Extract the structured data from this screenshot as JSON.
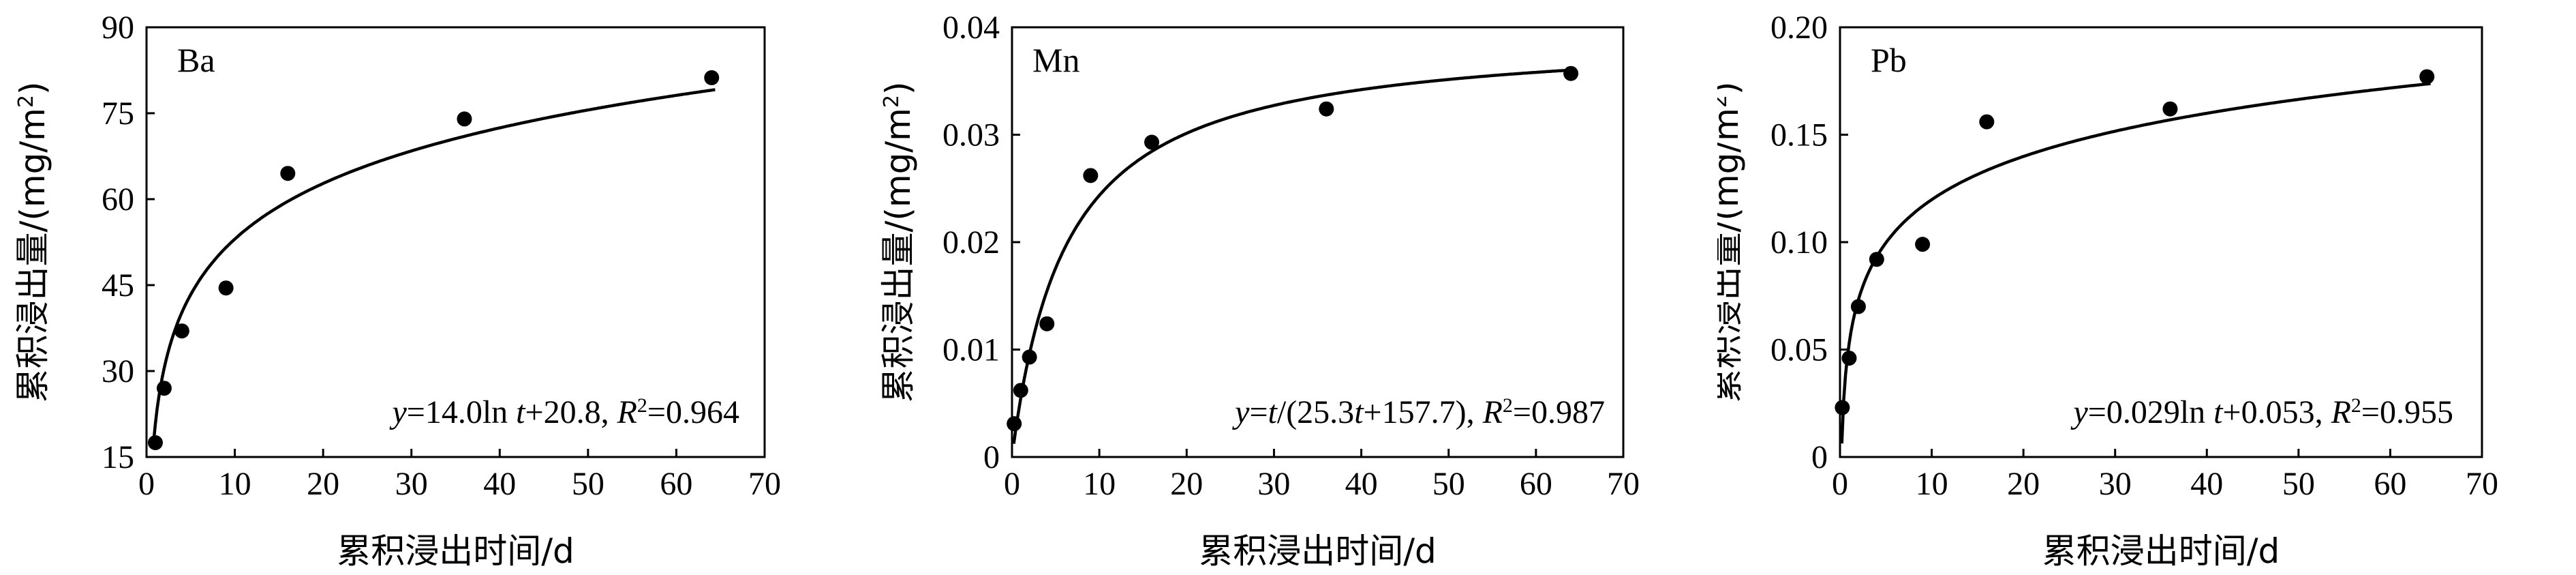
{
  "chart_data": [
    {
      "type": "scatter",
      "panel_label": "Ba",
      "xlabel": "累积浸出时间/d",
      "ylabel_main": "累积浸出量/(mg/m",
      "ylabel_sup": "2",
      "ylabel_tail": ")",
      "xlim": [
        0,
        70
      ],
      "ylim": [
        15,
        90
      ],
      "xticks": [
        "0",
        "10",
        "20",
        "30",
        "40",
        "50",
        "60",
        "70"
      ],
      "yticks": [
        "15",
        "30",
        "45",
        "60",
        "75",
        "90"
      ],
      "points": [
        [
          1,
          17.5
        ],
        [
          2,
          27
        ],
        [
          4,
          37
        ],
        [
          9,
          44.5
        ],
        [
          16,
          64.5
        ],
        [
          36,
          74
        ],
        [
          64,
          81.2
        ]
      ],
      "fit": {
        "model": "log",
        "a": 14.0,
        "b": 20.8
      },
      "equation": [
        "y",
        "=14.0ln ",
        "t",
        "+20.8, ",
        "R",
        "2",
        "=0.964"
      ]
    },
    {
      "type": "scatter",
      "panel_label": "Mn",
      "xlabel": "累积浸出时间/d",
      "ylabel_main": "累积浸出量/(mg/m",
      "ylabel_sup": "2",
      "ylabel_tail": ")",
      "xlim": [
        0,
        70
      ],
      "ylim": [
        0,
        0.04
      ],
      "xticks": [
        "0",
        "10",
        "20",
        "30",
        "40",
        "50",
        "60",
        "70"
      ],
      "yticks": [
        "0",
        "0.01",
        "0.02",
        "0.03",
        "0.04"
      ],
      "points": [
        [
          0.25,
          0.0031
        ],
        [
          1,
          0.0062
        ],
        [
          2,
          0.0093
        ],
        [
          4,
          0.0124
        ],
        [
          9,
          0.0262
        ],
        [
          16,
          0.0293
        ],
        [
          36,
          0.0324
        ],
        [
          64,
          0.0357
        ]
      ],
      "fit": {
        "model": "hyperbolic",
        "a": 25.3,
        "b": 157.7
      },
      "equation": [
        "y",
        "=",
        "t",
        "/(25.3",
        "t",
        "+157.7), ",
        "R",
        "2",
        "=0.987"
      ]
    },
    {
      "type": "scatter",
      "panel_label": "Pb",
      "xlabel": "累积浸出时间/d",
      "ylabel_main": "累积浸出量/(mg/m",
      "ylabel_sup": "2",
      "ylabel_tail": ")",
      "xlim": [
        0,
        70
      ],
      "ylim": [
        0,
        0.2
      ],
      "xticks": [
        "0",
        "10",
        "20",
        "30",
        "40",
        "50",
        "60",
        "70"
      ],
      "yticks": [
        "0",
        "0.05",
        "0.10",
        "0.15",
        "0.20"
      ],
      "points": [
        [
          0.25,
          0.023
        ],
        [
          1,
          0.046
        ],
        [
          2,
          0.07
        ],
        [
          4,
          0.092
        ],
        [
          9,
          0.099
        ],
        [
          16,
          0.156
        ],
        [
          36,
          0.162
        ],
        [
          64,
          0.177
        ]
      ],
      "fit": {
        "model": "log",
        "a": 0.029,
        "b": 0.053
      },
      "equation": [
        "y",
        "=0.029ln ",
        "t",
        "+0.053, ",
        "R",
        "2",
        "=0.955"
      ]
    }
  ]
}
